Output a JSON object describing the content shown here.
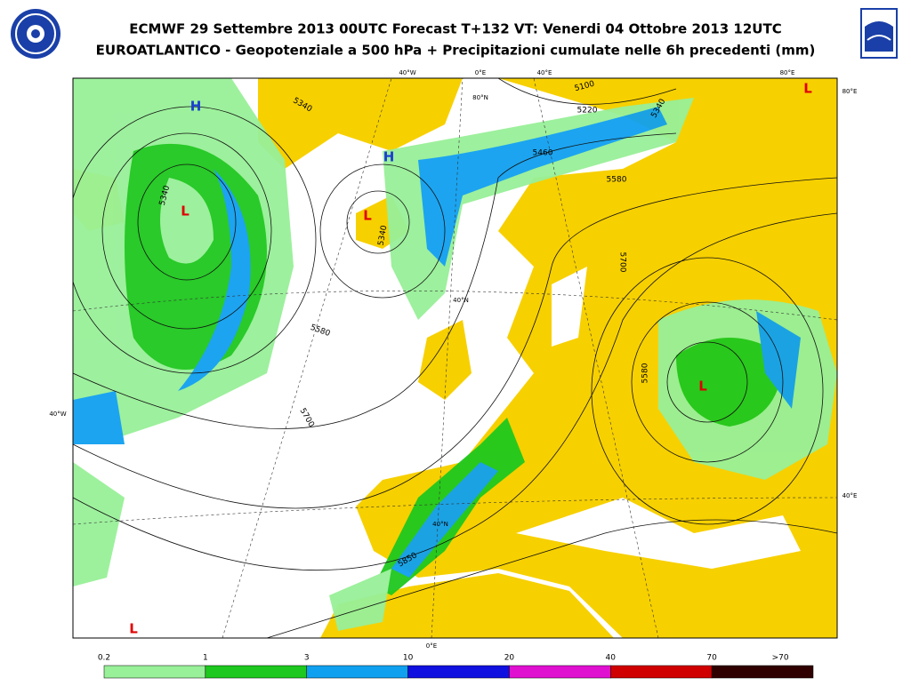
{
  "header": {
    "title": "ECMWF 29 Settembre 2013 00UTC Forecast T+132 VT: Venerdi 04 Ottobre 2013 12UTC",
    "subtitle": "EUROATLANTICO - Geopotenziale a 500 hPa + Precipitazioni cumulate nelle 6h precedenti (mm)"
  },
  "map": {
    "grid_labels": [
      "40°W",
      "0°E",
      "40°E",
      "80°E",
      "80°N",
      "80°E",
      "40°W",
      "40°N",
      "40°N",
      "40°E",
      "0°E"
    ],
    "contour_labels": [
      "5340",
      "5340",
      "5100",
      "5220",
      "5340",
      "5460",
      "5580",
      "5580",
      "5580",
      "5700",
      "5700",
      "5850",
      "5340"
    ],
    "pressure_centers": [
      {
        "label": "H",
        "color": "#1a3fd0"
      },
      {
        "label": "H",
        "color": "#1a3fd0"
      },
      {
        "label": "L",
        "color": "#e00000"
      },
      {
        "label": "L",
        "color": "#e00000"
      },
      {
        "label": "L",
        "color": "#e00000"
      },
      {
        "label": "L",
        "color": "#e00000"
      },
      {
        "label": "L",
        "color": "#e00000"
      }
    ]
  },
  "legend": {
    "labels": [
      "0.2",
      "1",
      "3",
      "10",
      "20",
      "40",
      "70",
      ">70"
    ],
    "colors": [
      "#98f098",
      "#1ec81e",
      "#10a0f0",
      "#1010e0",
      "#e010d0",
      "#d00000",
      "#300000"
    ]
  }
}
